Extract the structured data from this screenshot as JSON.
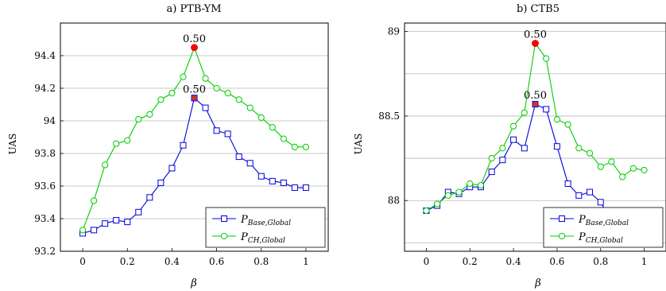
{
  "chart_data": [
    {
      "type": "line",
      "title": "a) PTB-YM",
      "xlabel": "β",
      "ylabel": "UAS",
      "xlim": [
        -0.1,
        1.1
      ],
      "ylim": [
        93.2,
        94.6
      ],
      "xticks": [
        "0",
        "0.2",
        "0.4",
        "0.6",
        "0.8",
        "1"
      ],
      "yticks": [
        "93.2",
        "93.4",
        "93.6",
        "93.8",
        "94",
        "94.2",
        "94.4"
      ],
      "grid": "horizontal",
      "legend": "bottom-right",
      "x": [
        0,
        0.05,
        0.1,
        0.15,
        0.2,
        0.25,
        0.3,
        0.35,
        0.4,
        0.45,
        0.5,
        0.55,
        0.6,
        0.65,
        0.7,
        0.75,
        0.8,
        0.85,
        0.9,
        0.95,
        1.0
      ],
      "series": [
        {
          "name": "P_{Base,Global}",
          "color": "#0000dd",
          "marker": "square",
          "values": [
            93.31,
            93.33,
            93.37,
            93.39,
            93.38,
            93.44,
            93.53,
            93.62,
            93.71,
            93.85,
            94.14,
            94.08,
            93.94,
            93.92,
            93.78,
            93.74,
            93.66,
            93.63,
            93.62,
            93.59,
            93.59
          ]
        },
        {
          "name": "P_{CH,Global}",
          "color": "#00cc00",
          "marker": "circle",
          "values": [
            93.33,
            93.51,
            93.73,
            93.86,
            93.88,
            94.01,
            94.04,
            94.13,
            94.17,
            94.27,
            94.45,
            94.26,
            94.2,
            94.17,
            94.13,
            94.08,
            94.02,
            93.96,
            93.89,
            93.84,
            93.84
          ]
        }
      ],
      "annotations": [
        {
          "text": "0.50",
          "x": 0.5,
          "y": 94.45,
          "marker_color": "#ff0000"
        },
        {
          "text": "0.50",
          "x": 0.5,
          "y": 94.14,
          "marker_color": "#cc3333"
        }
      ]
    },
    {
      "type": "line",
      "title": "b) CTB5",
      "xlabel": "β",
      "ylabel": "UAS",
      "xlim": [
        -0.1,
        1.1
      ],
      "ylim": [
        87.7,
        89.05
      ],
      "xticks": [
        "0",
        "0.2",
        "0.4",
        "0.6",
        "0.8",
        "1"
      ],
      "yticks": [
        "88",
        "88.5",
        "89"
      ],
      "grid": "horizontal",
      "legend": "bottom-right",
      "x": [
        0,
        0.05,
        0.1,
        0.15,
        0.2,
        0.25,
        0.3,
        0.35,
        0.4,
        0.45,
        0.5,
        0.55,
        0.6,
        0.65,
        0.7,
        0.75,
        0.8,
        0.85,
        0.9,
        0.95,
        1.0
      ],
      "series": [
        {
          "name": "P_{Base,Global}",
          "color": "#0000dd",
          "marker": "square",
          "values": [
            87.94,
            87.97,
            88.05,
            88.04,
            88.08,
            88.08,
            88.17,
            88.24,
            88.36,
            88.31,
            88.57,
            88.54,
            88.32,
            88.1,
            88.03,
            88.05,
            87.99,
            87.88,
            87.88,
            87.89,
            null
          ]
        },
        {
          "name": "P_{CH,Global}",
          "color": "#00cc00",
          "marker": "circle",
          "values": [
            87.94,
            87.98,
            88.03,
            88.05,
            88.1,
            88.09,
            88.25,
            88.31,
            88.44,
            88.52,
            88.93,
            88.84,
            88.48,
            88.45,
            88.31,
            88.28,
            88.2,
            88.23,
            88.14,
            88.19,
            88.18
          ]
        }
      ],
      "annotations": [
        {
          "text": "0.50",
          "x": 0.5,
          "y": 88.93,
          "marker_color": "#ff0000"
        },
        {
          "text": "0.50",
          "x": 0.5,
          "y": 88.57,
          "marker_color": "#cc3333"
        }
      ]
    }
  ]
}
